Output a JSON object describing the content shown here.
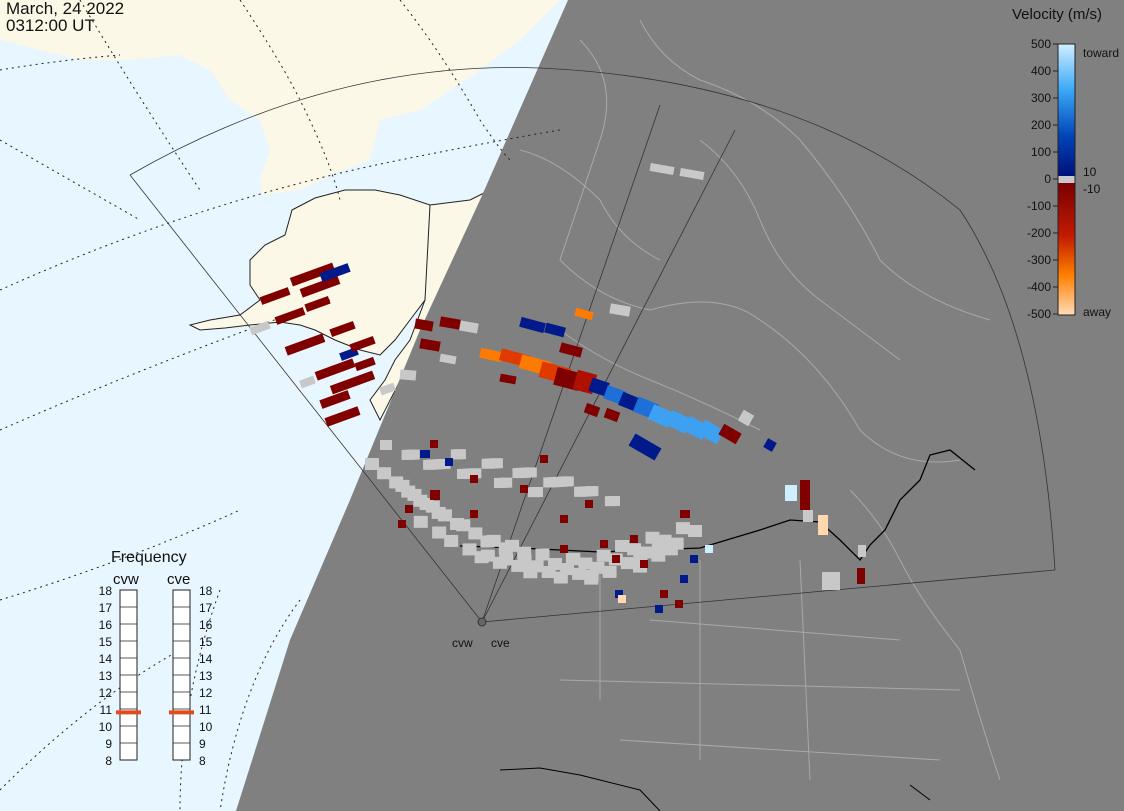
{
  "header": {
    "date": "March, 24 2022",
    "time": "0312:00 UT"
  },
  "legend": {
    "title": "Velocity (m/s)",
    "ticks": [
      "500",
      "400",
      "300",
      "200",
      "100",
      "0",
      "-100",
      "-200",
      "-300",
      "-400",
      "-500"
    ],
    "top_label": "toward",
    "mid_label_pos": "10",
    "mid_label_neg": "-10",
    "bottom_label": "away",
    "colors": {
      "toward_light": "#cfefff",
      "toward_mid": "#1e8fe8",
      "toward_dark": "#001a8c",
      "zero_band": "#c8c8c8",
      "away_dark": "#800000",
      "away_mid": "#e03c00",
      "away_light": "#ffd8b0"
    }
  },
  "frequency": {
    "title": "Frequency",
    "radars": [
      {
        "name": "cvw",
        "selected_mhz": 10.8
      },
      {
        "name": "cve",
        "selected_mhz": 10.8
      }
    ],
    "scale": [
      "18",
      "17",
      "16",
      "15",
      "14",
      "13",
      "12",
      "11",
      "10",
      "9",
      "8"
    ],
    "marker_color": "#e04a1c"
  },
  "radar_labels": [
    "cvw",
    "cve"
  ],
  "map": {
    "day_ocean": "#e8f6ff",
    "day_land": "#fbf8e8",
    "night": "#808080",
    "night_boundaries": "#a8a8a8"
  }
}
